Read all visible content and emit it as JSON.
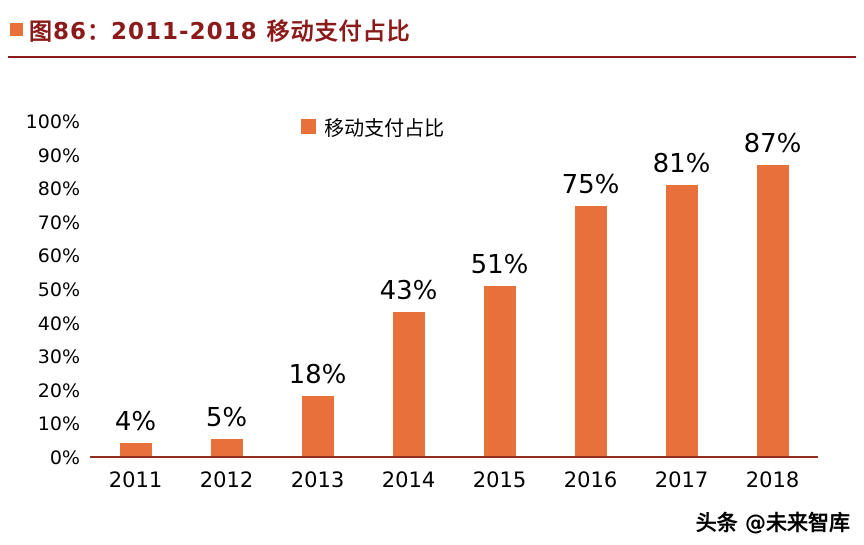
{
  "header": {
    "title": "图86：2011-2018 移动支付占比"
  },
  "footer": {
    "watermark": "头条 @未来智库"
  },
  "colors": {
    "title": "#8b1a1a",
    "bar": "#e8703a",
    "axis": "#8e2f1e"
  },
  "chart_data": {
    "type": "bar",
    "title": "2011-2018 移动支付占比",
    "legend": "移动支付占比",
    "legend_position": "top-center",
    "categories": [
      "2011",
      "2012",
      "2013",
      "2014",
      "2015",
      "2016",
      "2017",
      "2018"
    ],
    "values": [
      4,
      5,
      18,
      43,
      51,
      75,
      81,
      87
    ],
    "labels": [
      "4%",
      "5%",
      "18%",
      "43%",
      "51%",
      "75%",
      "81%",
      "87%"
    ],
    "ylabel": "",
    "xlabel": "",
    "ylim": [
      0,
      100
    ],
    "yticks": [
      "0%",
      "10%",
      "20%",
      "30%",
      "40%",
      "50%",
      "60%",
      "70%",
      "80%",
      "90%",
      "100%"
    ],
    "grid": false
  }
}
